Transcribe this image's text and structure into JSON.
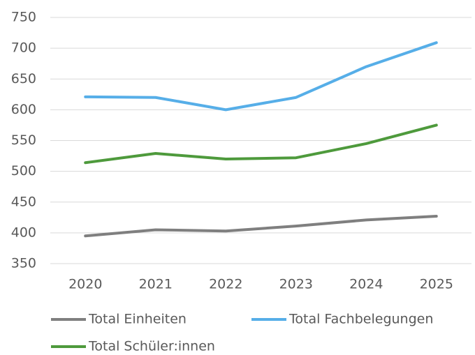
{
  "chart_data": {
    "type": "line",
    "categories": [
      "2020",
      "2021",
      "2022",
      "2023",
      "2024",
      "2025"
    ],
    "series": [
      {
        "name": "Total Einheiten",
        "color": "#7f7f7f",
        "values": [
          395,
          405,
          403,
          411,
          421,
          427
        ]
      },
      {
        "name": "Total Fachbelegungen",
        "color": "#56aee8",
        "values": [
          621,
          620,
          600,
          620,
          670,
          709
        ]
      },
      {
        "name": "Total Schüler:innen",
        "color": "#4e9a3c",
        "values": [
          514,
          529,
          520,
          522,
          545,
          575
        ]
      }
    ],
    "ylim": [
      350,
      750
    ],
    "yticks": [
      350,
      400,
      450,
      500,
      550,
      600,
      650,
      700,
      750
    ],
    "grid": true
  }
}
